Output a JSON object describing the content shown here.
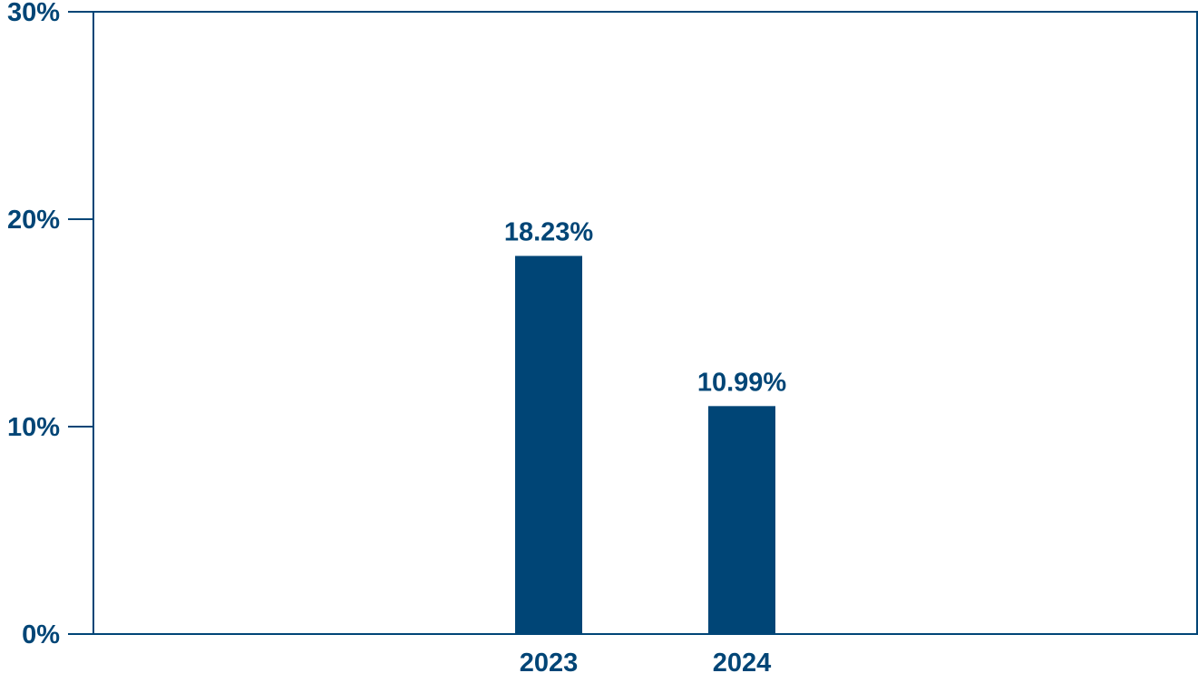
{
  "colors": {
    "bar": "#004576",
    "axis": "#004576",
    "text": "#004576",
    "background": "#ffffff"
  },
  "chart_data": {
    "type": "bar",
    "title": "",
    "xlabel": "",
    "ylabel": "",
    "categories": [
      "2023",
      "2024"
    ],
    "values": [
      18.23,
      10.99
    ],
    "data_labels": [
      "18.23%",
      "10.99%"
    ],
    "ylim": [
      0,
      30
    ],
    "yticks": [
      0,
      10,
      20,
      30
    ],
    "ytick_labels": [
      "0%",
      "10%",
      "20%",
      "30%"
    ],
    "grid": false,
    "legend": "none"
  }
}
